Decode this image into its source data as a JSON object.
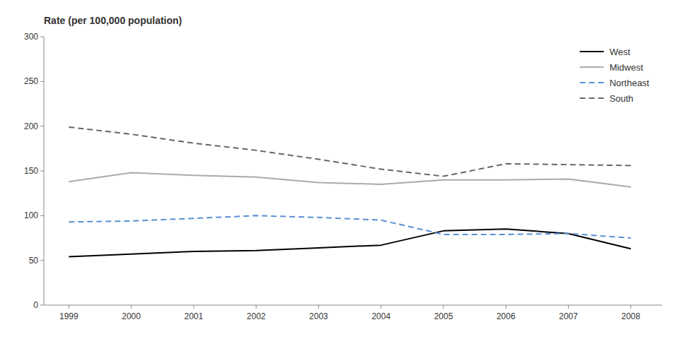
{
  "chart_data": {
    "type": "line",
    "y_label": "Rate (per 100,000 population)",
    "x": [
      1999,
      2000,
      2001,
      2002,
      2003,
      2004,
      2005,
      2006,
      2007,
      2008
    ],
    "series": [
      {
        "name": "West",
        "color": "#000000",
        "line_style": "solid",
        "values": [
          54,
          57,
          60,
          61,
          64,
          67,
          83,
          85,
          80,
          63
        ]
      },
      {
        "name": "Midwest",
        "color": "#aaaaaa",
        "line_style": "solid",
        "values": [
          138,
          148,
          145,
          143,
          137,
          135,
          140,
          140,
          141,
          132
        ]
      },
      {
        "name": "Northeast",
        "color": "#5b8fd4",
        "line_style": "dashed",
        "values": [
          93,
          94,
          97,
          100,
          98,
          95,
          79,
          79,
          80,
          75
        ]
      },
      {
        "name": "South",
        "color": "#666666",
        "line_style": "dashed",
        "values": [
          199,
          191,
          181,
          173,
          163,
          152,
          144,
          158,
          157,
          156
        ]
      }
    ],
    "xlim": [
      1998.6,
      2008.5
    ],
    "xticks": [
      1999,
      2000,
      2001,
      2002,
      2003,
      2004,
      2005,
      2006,
      2007,
      2008
    ],
    "ylim": [
      0,
      300
    ],
    "yticks": [
      0,
      50,
      100,
      150,
      200,
      250,
      300
    ],
    "grid": false,
    "legend": "upper right"
  }
}
